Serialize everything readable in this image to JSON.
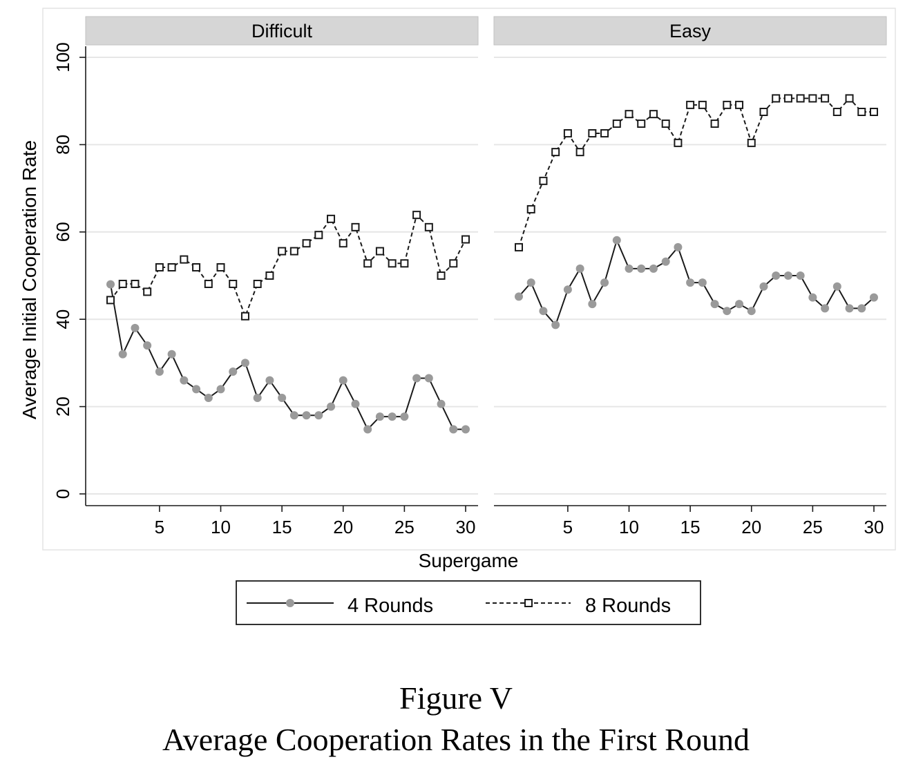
{
  "figure": {
    "label": "Figure V",
    "caption": "Average Cooperation Rates in the First Round"
  },
  "chart_data": {
    "type": "line",
    "ylabel": "Average Initial Cooperation Rate",
    "xlabel": "Supergame",
    "ylim": [
      0,
      100
    ],
    "xlim": [
      1,
      30
    ],
    "y_ticks": [
      0,
      20,
      40,
      60,
      80,
      100
    ],
    "x_ticks": [
      5,
      10,
      15,
      20,
      25,
      30
    ],
    "grid": true,
    "legend": {
      "placement": "bottom-center",
      "entries": [
        "4 Rounds",
        "8 Rounds"
      ]
    },
    "line_color": "#1a1a1a",
    "marker_color_4": "#9a9a9a",
    "panels": [
      {
        "title": "Difficult",
        "series": [
          {
            "name": "4 Rounds",
            "style": "solid-circle",
            "x": [
              1,
              2,
              3,
              4,
              5,
              6,
              7,
              8,
              9,
              10,
              11,
              12,
              13,
              14,
              15,
              16,
              17,
              18,
              19,
              20,
              21,
              22,
              23,
              24,
              25,
              26,
              27,
              28,
              29,
              30
            ],
            "values": [
              48,
              32,
              38,
              34,
              28,
              32,
              26,
              24,
              22,
              24,
              28,
              30,
              22,
              26,
              22,
              18,
              18,
              18,
              20,
              26,
              20.6,
              14.8,
              17.7,
              17.7,
              17.7,
              26.5,
              26.5,
              20.6,
              14.8,
              14.8
            ]
          },
          {
            "name": "8 Rounds",
            "style": "dashed-square",
            "x": [
              1,
              2,
              3,
              4,
              5,
              6,
              7,
              8,
              9,
              10,
              11,
              12,
              13,
              14,
              15,
              16,
              17,
              18,
              19,
              20,
              21,
              22,
              23,
              24,
              25,
              26,
              27,
              28,
              29,
              30
            ],
            "values": [
              44.4,
              48.1,
              48.1,
              46.3,
              51.9,
              51.9,
              53.7,
              51.9,
              48.1,
              51.9,
              48.1,
              40.7,
              48.1,
              50,
              55.6,
              55.6,
              57.4,
              59.3,
              63,
              57.4,
              61.1,
              52.8,
              55.6,
              52.8,
              52.8,
              63.9,
              61.1,
              50,
              52.8,
              58.3
            ]
          }
        ]
      },
      {
        "title": "Easy",
        "series": [
          {
            "name": "4 Rounds",
            "style": "solid-circle",
            "x": [
              1,
              2,
              3,
              4,
              5,
              6,
              7,
              8,
              9,
              10,
              11,
              12,
              13,
              14,
              15,
              16,
              17,
              18,
              19,
              20,
              21,
              22,
              23,
              24,
              25,
              26,
              27,
              28,
              29,
              30
            ],
            "values": [
              45.2,
              48.4,
              41.9,
              38.7,
              46.8,
              51.6,
              43.5,
              48.4,
              58.1,
              51.6,
              51.6,
              51.6,
              53.2,
              56.5,
              48.4,
              48.4,
              43.5,
              41.9,
              43.5,
              41.9,
              47.5,
              50,
              50,
              50,
              45,
              42.5,
              47.5,
              42.5,
              42.5,
              45
            ]
          },
          {
            "name": "8 Rounds",
            "style": "dashed-square",
            "x": [
              1,
              2,
              3,
              4,
              5,
              6,
              7,
              8,
              9,
              10,
              11,
              12,
              13,
              14,
              15,
              16,
              17,
              18,
              19,
              20,
              21,
              22,
              23,
              24,
              25,
              26,
              27,
              28,
              29,
              30
            ],
            "values": [
              56.5,
              65.2,
              71.7,
              78.3,
              82.6,
              78.3,
              82.6,
              82.6,
              84.8,
              87,
              84.8,
              87,
              84.8,
              80.4,
              89.1,
              89.1,
              84.8,
              89.1,
              89.1,
              80.4,
              87.5,
              90.6,
              90.6,
              90.6,
              90.6,
              90.6,
              87.5,
              90.6,
              87.5,
              87.5
            ]
          }
        ]
      }
    ]
  }
}
